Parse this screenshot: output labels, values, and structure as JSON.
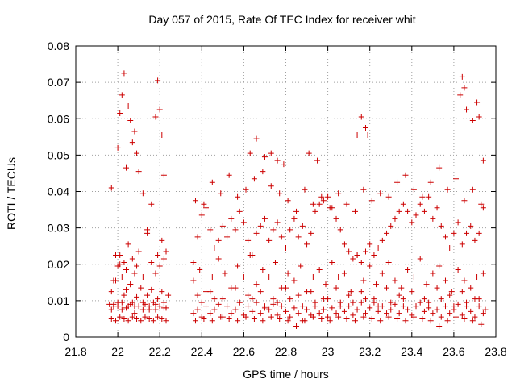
{
  "chart_data": {
    "type": "scatter",
    "title": "Day 057 of 2015, Rate Of TEC Index for receiver whit",
    "xlabel": "GPS time / hours",
    "ylabel": "ROTI / TECUs",
    "xlim": [
      21.8,
      23.8
    ],
    "ylim": [
      0,
      0.08
    ],
    "x_ticks": [
      21.8,
      22,
      22.2,
      22.4,
      22.6,
      22.8,
      23,
      23.2,
      23.4,
      23.6,
      23.8
    ],
    "x_tick_labels": [
      "21.8",
      "22",
      "22.2",
      "22.4",
      "22.6",
      "22.8",
      "23",
      "23.2",
      "23.4",
      "23.6",
      "23.8"
    ],
    "y_ticks": [
      0,
      0.01,
      0.02,
      0.03,
      0.04,
      0.05,
      0.06,
      0.07,
      0.08
    ],
    "y_tick_labels": [
      "0",
      "0.01",
      "0.02",
      "0.03",
      "0.04",
      "0.05",
      "0.06",
      "0.07",
      "0.08"
    ],
    "grid": true,
    "marker": "+",
    "marker_color": "#cc0000",
    "series": [
      {
        "x": [
          21.96,
          21.97,
          21.98,
          21.99,
          22.0,
          22.01,
          22.02,
          22.03,
          22.04,
          22.05,
          22.06,
          22.07,
          22.08,
          22.09,
          22.1,
          22.11,
          22.12,
          22.13,
          22.14,
          22.15,
          22.16,
          22.17,
          22.18,
          22.19,
          22.2,
          22.21,
          22.22,
          22.23,
          22.24,
          21.97,
          21.99,
          22.01,
          22.03,
          22.05,
          22.07,
          22.09,
          22.11,
          22.13,
          22.15,
          22.17,
          22.19,
          22.21,
          22.23,
          21.97,
          21.98,
          21.99,
          22.0,
          22.01,
          22.02,
          22.03,
          22.04,
          22.05,
          22.06,
          22.07,
          22.08,
          22.09,
          22.1,
          22.12,
          22.14,
          22.16,
          22.18,
          22.19,
          22.2,
          22.21,
          22.22,
          22.0,
          22.01,
          22.02,
          22.03,
          22.04,
          22.05,
          22.06,
          22.07,
          22.08,
          22.09,
          22.1,
          22.12,
          22.14,
          22.16,
          22.18,
          22.19,
          22.2,
          22.21,
          22.22,
          22.23,
          21.97,
          21.98,
          22.0,
          22.02,
          22.04,
          22.06,
          22.08,
          22.12,
          22.15,
          22.18,
          22.2,
          22.22,
          22.36,
          22.38,
          22.4,
          22.42,
          22.44,
          22.46,
          22.48,
          22.5,
          22.52,
          22.54,
          22.56,
          22.58,
          22.6,
          22.62,
          22.64,
          22.66,
          22.68,
          22.7,
          22.72,
          22.74,
          22.76,
          22.78,
          22.8,
          22.82,
          22.84,
          22.86,
          22.88,
          22.9,
          22.92,
          22.94,
          22.96,
          22.98,
          23.0,
          23.02,
          23.04,
          23.06,
          23.08,
          23.1,
          23.12,
          23.14,
          23.16,
          23.18,
          23.2,
          23.22,
          23.24,
          23.26,
          23.28,
          23.3,
          23.32,
          23.34,
          23.36,
          23.38,
          23.4,
          23.42,
          23.44,
          23.46,
          23.48,
          23.5,
          23.52,
          23.54,
          23.56,
          23.58,
          23.6,
          23.62,
          23.64,
          23.66,
          23.68,
          23.7,
          23.72,
          23.74,
          23.75,
          22.37,
          22.41,
          22.45,
          22.49,
          22.53,
          22.57,
          22.61,
          22.65,
          22.69,
          22.73,
          22.77,
          22.81,
          22.85,
          22.89,
          22.93,
          22.97,
          23.01,
          23.05,
          23.09,
          23.13,
          23.17,
          23.21,
          23.25,
          23.29,
          23.33,
          23.37,
          23.41,
          23.45,
          23.49,
          23.53,
          23.57,
          23.61,
          23.65,
          23.69,
          23.73,
          22.36,
          22.39,
          22.42,
          22.45,
          22.48,
          22.51,
          22.54,
          22.57,
          22.6,
          22.63,
          22.66,
          22.69,
          22.72,
          22.75,
          22.78,
          22.81,
          22.84,
          22.87,
          22.9,
          22.93,
          22.96,
          22.99,
          23.02,
          23.05,
          23.08,
          23.11,
          23.14,
          23.17,
          23.2,
          23.23,
          23.26,
          23.29,
          23.32,
          23.35,
          23.38,
          23.41,
          23.44,
          23.47,
          23.5,
          23.53,
          23.56,
          23.59,
          23.62,
          23.65,
          23.68,
          23.71,
          23.74,
          22.38,
          22.44,
          22.5,
          22.56,
          22.62,
          22.68,
          22.74,
          22.8,
          22.86,
          22.92,
          22.98,
          23.04,
          23.1,
          23.16,
          23.22,
          23.28,
          23.34,
          23.4,
          23.46,
          23.52,
          23.58,
          23.64,
          23.7,
          22.36,
          22.38,
          22.4,
          22.42,
          22.44,
          22.46,
          22.48,
          22.5,
          22.52,
          22.54,
          22.56,
          22.58,
          22.6,
          22.62,
          22.64,
          22.66,
          22.68,
          22.7,
          22.72,
          22.74,
          22.76,
          22.78,
          22.8,
          22.82,
          22.84,
          22.86,
          22.88,
          22.9,
          22.92,
          22.94,
          22.96,
          22.98,
          23.0,
          23.02,
          23.04,
          23.06,
          23.08,
          23.1,
          23.12,
          23.14,
          23.16,
          23.18,
          23.2,
          23.22,
          23.24,
          23.26,
          23.28,
          23.3,
          23.32,
          23.34,
          23.36,
          23.38,
          23.4,
          23.42,
          23.44,
          23.46,
          23.48,
          23.5,
          23.52,
          23.54,
          23.56,
          23.58,
          23.6,
          23.62,
          23.64,
          23.66,
          23.68,
          23.7,
          23.72,
          23.74,
          22.37,
          22.41,
          22.45,
          22.49,
          22.53,
          22.57,
          22.61,
          22.65,
          22.69,
          22.73,
          22.77,
          22.81,
          22.85,
          22.89,
          22.93,
          22.97,
          23.01,
          23.05,
          23.09,
          23.13,
          23.17,
          23.21,
          23.25,
          23.29,
          23.33,
          23.37,
          23.41,
          23.45,
          23.49,
          23.53,
          23.57,
          23.61,
          23.65,
          23.69,
          23.73,
          22.63,
          22.66,
          22.7,
          22.73,
          22.76,
          22.79,
          22.91,
          22.95,
          23.14,
          23.16,
          23.18,
          23.19,
          23.61,
          23.63,
          23.64,
          23.65,
          23.66,
          23.69,
          23.71,
          23.72,
          23.74,
          22.4,
          22.46,
          22.52,
          22.58,
          22.64,
          22.7,
          22.76,
          22.82,
          22.88,
          22.94,
          23.0,
          23.06,
          23.12,
          23.18,
          23.24,
          23.3,
          23.36,
          23.42,
          23.48,
          23.54,
          23.6,
          23.66,
          23.72
        ],
        "y": [
          0.009,
          0.0125,
          0.0085,
          0.0155,
          0.0095,
          0.02,
          0.0075,
          0.0115,
          0.013,
          0.0085,
          0.0145,
          0.0095,
          0.0065,
          0.011,
          0.0085,
          0.0135,
          0.0075,
          0.009,
          0.0115,
          0.0085,
          0.013,
          0.0095,
          0.0075,
          0.0105,
          0.0085,
          0.0125,
          0.0095,
          0.008,
          0.0115,
          0.005,
          0.0045,
          0.0055,
          0.005,
          0.0045,
          0.0055,
          0.005,
          0.0045,
          0.0055,
          0.005,
          0.0045,
          0.0055,
          0.005,
          0.0045,
          0.041,
          0.0155,
          0.0225,
          0.052,
          0.0615,
          0.0665,
          0.0725,
          0.0465,
          0.0635,
          0.0595,
          0.0535,
          0.0565,
          0.0505,
          0.0455,
          0.0395,
          0.0295,
          0.0365,
          0.0605,
          0.0705,
          0.0625,
          0.0555,
          0.0445,
          0.0195,
          0.0225,
          0.0165,
          0.0205,
          0.0185,
          0.0255,
          0.0145,
          0.0215,
          0.0175,
          0.0195,
          0.0235,
          0.0165,
          0.0285,
          0.0205,
          0.0175,
          0.0225,
          0.0195,
          0.0265,
          0.0215,
          0.0235,
          0.0075,
          0.009,
          0.0085,
          0.0095,
          0.008,
          0.009,
          0.0085,
          0.0095,
          0.0075,
          0.009,
          0.0085,
          0.008,
          0.0065,
          0.0075,
          0.0055,
          0.0085,
          0.0065,
          0.0075,
          0.009,
          0.0055,
          0.0085,
          0.0065,
          0.0075,
          0.0095,
          0.006,
          0.0085,
          0.007,
          0.0095,
          0.0065,
          0.008,
          0.0075,
          0.009,
          0.006,
          0.0085,
          0.007,
          0.0055,
          0.008,
          0.0065,
          0.0045,
          0.0075,
          0.006,
          0.0085,
          0.0065,
          0.0075,
          0.0055,
          0.008,
          0.0065,
          0.0095,
          0.007,
          0.0085,
          0.006,
          0.0075,
          0.0095,
          0.0065,
          0.008,
          0.0095,
          0.007,
          0.0085,
          0.0065,
          0.0075,
          0.009,
          0.0065,
          0.0085,
          0.0075,
          0.006,
          0.0085,
          0.0095,
          0.007,
          0.008,
          0.0065,
          0.0075,
          0.0055,
          0.0085,
          0.0065,
          0.0075,
          0.009,
          0.006,
          0.0085,
          0.007,
          0.0055,
          0.0085,
          0.0065,
          0.0075,
          0.0045,
          0.005,
          0.0045,
          0.0055,
          0.005,
          0.0045,
          0.0055,
          0.005,
          0.0045,
          0.0055,
          0.005,
          0.0045,
          0.003,
          0.0045,
          0.0055,
          0.005,
          0.0045,
          0.0055,
          0.005,
          0.0045,
          0.0055,
          0.005,
          0.0045,
          0.0055,
          0.005,
          0.0045,
          0.0055,
          0.005,
          0.0045,
          0.003,
          0.0045,
          0.0055,
          0.005,
          0.0045,
          0.0035,
          0.0155,
          0.0185,
          0.0125,
          0.0165,
          0.0215,
          0.0175,
          0.0135,
          0.0195,
          0.0165,
          0.0225,
          0.0145,
          0.0185,
          0.0165,
          0.0205,
          0.0135,
          0.0175,
          0.0155,
          0.0195,
          0.0125,
          0.0165,
          0.0185,
          0.0145,
          0.0205,
          0.0165,
          0.0175,
          0.0125,
          0.0225,
          0.0155,
          0.0195,
          0.0145,
          0.0175,
          0.0205,
          0.0155,
          0.0135,
          0.0185,
          0.0165,
          0.0215,
          0.0145,
          0.0175,
          0.0195,
          0.0155,
          0.0125,
          0.0185,
          0.0155,
          0.0135,
          0.0165,
          0.0175,
          0.0115,
          0.0125,
          0.0105,
          0.0135,
          0.0115,
          0.0125,
          0.0105,
          0.0135,
          0.0115,
          0.0125,
          0.0105,
          0.0135,
          0.0115,
          0.0125,
          0.0105,
          0.0135,
          0.0115,
          0.0125,
          0.0105,
          0.0135,
          0.0115,
          0.0125,
          0.0105,
          0.0205,
          0.0275,
          0.0335,
          0.0355,
          0.0295,
          0.0245,
          0.0265,
          0.0305,
          0.0275,
          0.0325,
          0.0295,
          0.0345,
          0.0315,
          0.0265,
          0.0225,
          0.0285,
          0.0305,
          0.0325,
          0.0265,
          0.0295,
          0.0315,
          0.0275,
          0.0245,
          0.0295,
          0.0325,
          0.0275,
          0.0305,
          0.0255,
          0.0285,
          0.0345,
          0.0365,
          0.0375,
          0.0385,
          0.0355,
          0.0325,
          0.0295,
          0.0255,
          0.0235,
          0.0215,
          0.0225,
          0.0205,
          0.0235,
          0.0255,
          0.0225,
          0.0245,
          0.0265,
          0.0285,
          0.0305,
          0.0325,
          0.0345,
          0.0365,
          0.0345,
          0.0315,
          0.0335,
          0.0365,
          0.0345,
          0.0385,
          0.0325,
          0.0355,
          0.0305,
          0.0275,
          0.0245,
          0.0285,
          0.0315,
          0.0255,
          0.0285,
          0.0305,
          0.0265,
          0.0285,
          0.0355,
          0.0375,
          0.0365,
          0.0425,
          0.0395,
          0.0445,
          0.0385,
          0.0405,
          0.0435,
          0.0455,
          0.0415,
          0.0395,
          0.0375,
          0.0345,
          0.0405,
          0.0365,
          0.0385,
          0.0355,
          0.0395,
          0.0365,
          0.0345,
          0.0405,
          0.0375,
          0.0395,
          0.0385,
          0.0425,
          0.0445,
          0.0405,
          0.0385,
          0.0425,
          0.0465,
          0.0405,
          0.0435,
          0.0375,
          0.0405,
          0.0365,
          0.0505,
          0.0545,
          0.0495,
          0.0505,
          0.0485,
          0.0475,
          0.0505,
          0.0485,
          0.0555,
          0.0605,
          0.0575,
          0.0555,
          0.0635,
          0.0665,
          0.0715,
          0.0685,
          0.0625,
          0.0595,
          0.0645,
          0.0605,
          0.0485,
          0.0095,
          0.0105,
          0.0085,
          0.0095,
          0.0105,
          0.0085,
          0.0095,
          0.0105,
          0.0085,
          0.0095,
          0.0105,
          0.0085,
          0.0095,
          0.0105,
          0.0085,
          0.0095,
          0.0105,
          0.0085,
          0.0095,
          0.0105,
          0.0085,
          0.0095,
          0.0105
        ]
      }
    ]
  }
}
